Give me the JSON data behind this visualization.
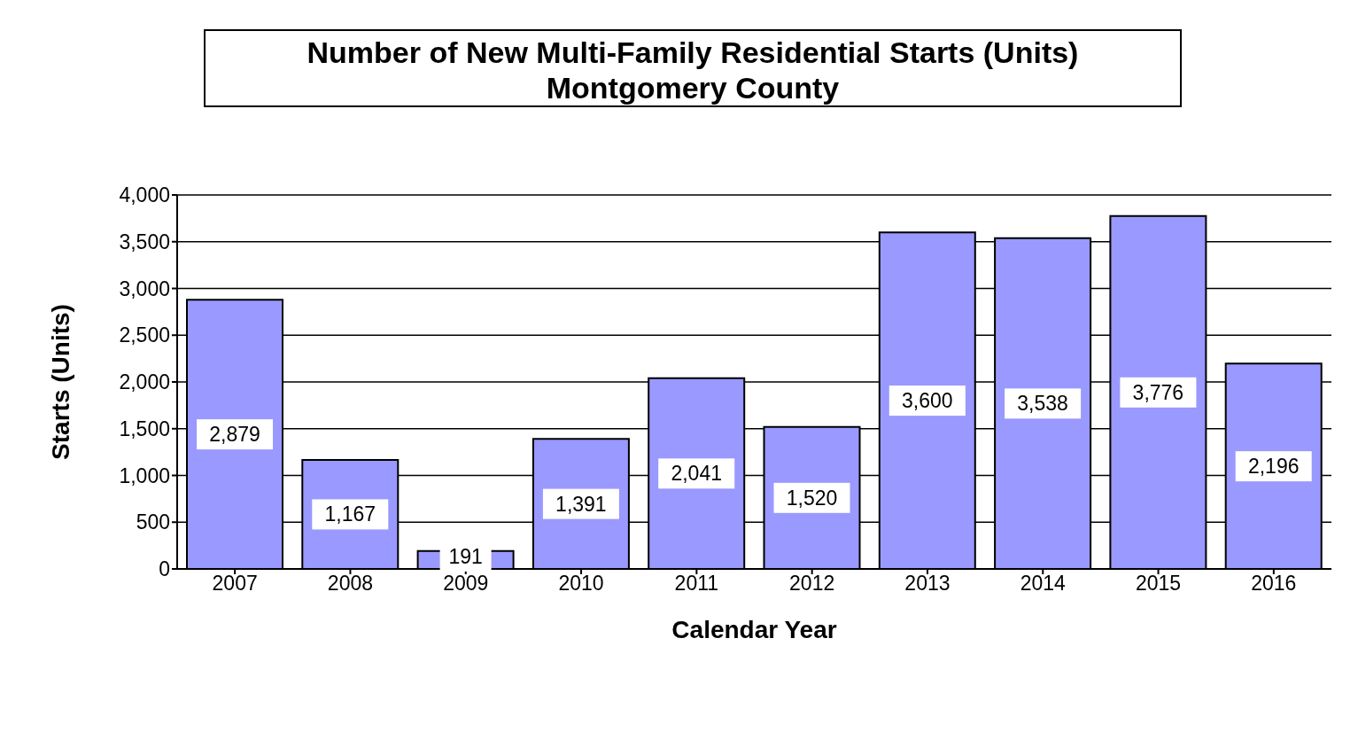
{
  "chart_data": {
    "type": "bar",
    "title": "Number of New Multi-Family  Residential Starts (Units)",
    "subtitle": "Montgomery County",
    "xlabel": "Calendar Year",
    "ylabel": "Starts (Units)",
    "categories": [
      "2007",
      "2008",
      "2009",
      "2010",
      "2011",
      "2012",
      "2013",
      "2014",
      "2015",
      "2016"
    ],
    "values": [
      2879,
      1167,
      191,
      1391,
      2041,
      1520,
      3600,
      3538,
      3776,
      2196
    ],
    "color": "#9999ff",
    "value_labels": [
      "2,879",
      "1,167",
      "191",
      "1,391",
      "2,041",
      "1,520",
      "3,600",
      "3,538",
      "3,776",
      "2,196"
    ],
    "ylim": [
      0,
      4000
    ],
    "yticks": [
      {
        "value": 0,
        "label": "0"
      },
      {
        "value": 500,
        "label": "500"
      },
      {
        "value": 1000,
        "label": "1,000"
      },
      {
        "value": 1500,
        "label": "1,500"
      },
      {
        "value": 2000,
        "label": "2,000"
      },
      {
        "value": 2500,
        "label": "2,500"
      },
      {
        "value": 3000,
        "label": "3,000"
      },
      {
        "value": 3500,
        "label": "3,500"
      },
      {
        "value": 4000,
        "label": "4,000"
      }
    ],
    "grid": "y"
  }
}
